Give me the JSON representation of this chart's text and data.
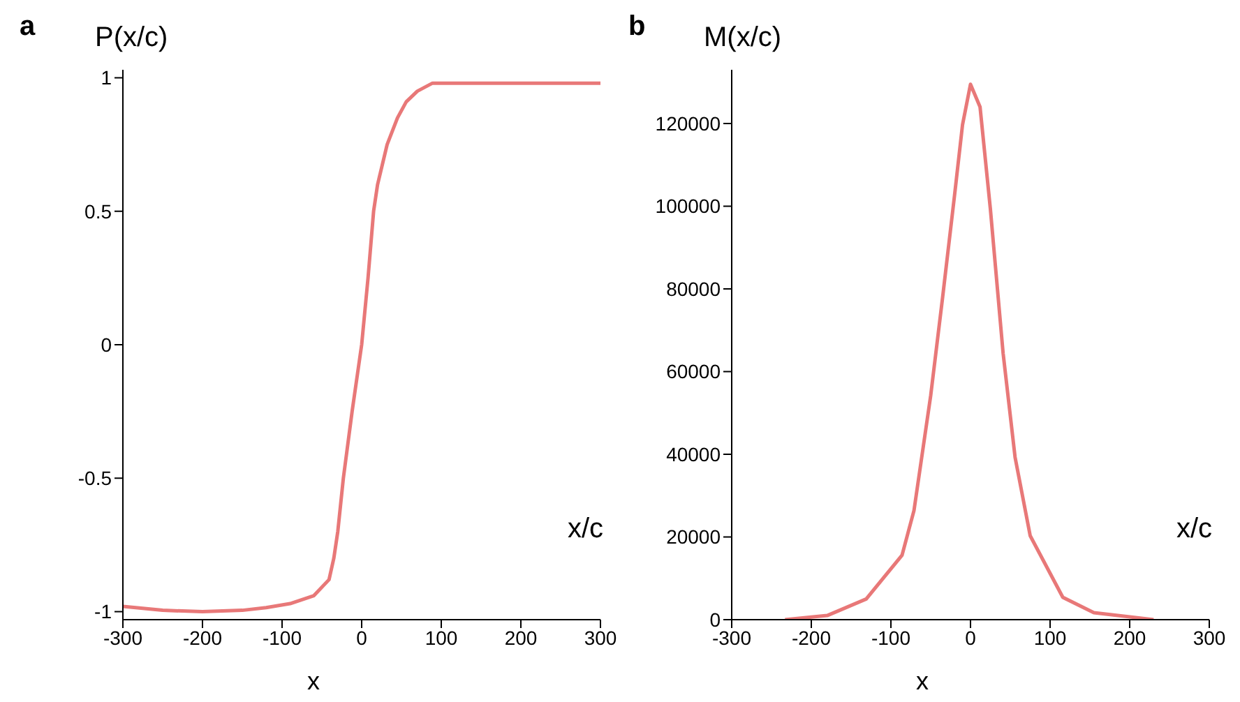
{
  "chart_data": [
    {
      "type": "line",
      "title": "a",
      "ylabel": "P(x/c)",
      "xlabel": "x",
      "annotations": [
        "x/c"
      ],
      "xlim": [
        -300,
        300
      ],
      "xticks": [
        -300,
        -200,
        -100,
        0,
        100,
        200,
        300
      ],
      "ylim": [
        -1.03,
        1.03
      ],
      "yticks": [
        -1,
        -0.5,
        0,
        0.5,
        1
      ],
      "grid": false,
      "marker": "none",
      "line_style": "solid",
      "series": [
        {
          "color": "#e87878",
          "x": [
            -300,
            -250,
            -200,
            -150,
            -120,
            -90,
            -60,
            -41,
            -35,
            -30,
            -23,
            -12,
            0,
            8,
            15,
            20,
            32,
            45,
            56,
            70,
            89,
            300
          ],
          "values": [
            -0.98,
            -0.995,
            -1.0,
            -0.995,
            -0.985,
            -0.97,
            -0.94,
            -0.88,
            -0.8,
            -0.7,
            -0.5,
            -0.25,
            0,
            0.25,
            0.5,
            0.6,
            0.75,
            0.85,
            0.91,
            0.95,
            0.98,
            0.98
          ]
        }
      ]
    },
    {
      "type": "line",
      "title": "b",
      "ylabel": "M(x/c)",
      "xlabel": "x",
      "annotations": [
        "x/c"
      ],
      "xlim": [
        -300,
        300
      ],
      "xticks": [
        -300,
        -200,
        -100,
        0,
        100,
        200,
        300
      ],
      "ylim": [
        0,
        133000
      ],
      "yticks": [
        0,
        20000,
        40000,
        60000,
        80000,
        100000,
        120000
      ],
      "grid": false,
      "marker": "none",
      "line_style": "solid",
      "series": [
        {
          "color": "#e87878",
          "x": [
            -233,
            -180,
            -131,
            -86,
            -71,
            -50,
            -35,
            -20,
            -10,
            0,
            12,
            25,
            41,
            56,
            75,
            116,
            155,
            230
          ],
          "values": [
            0,
            1000,
            5000,
            15600,
            26400,
            54200,
            78000,
            102700,
            119700,
            129500,
            124000,
            99300,
            64400,
            39300,
            20300,
            5400,
            1700,
            0
          ]
        }
      ]
    }
  ]
}
